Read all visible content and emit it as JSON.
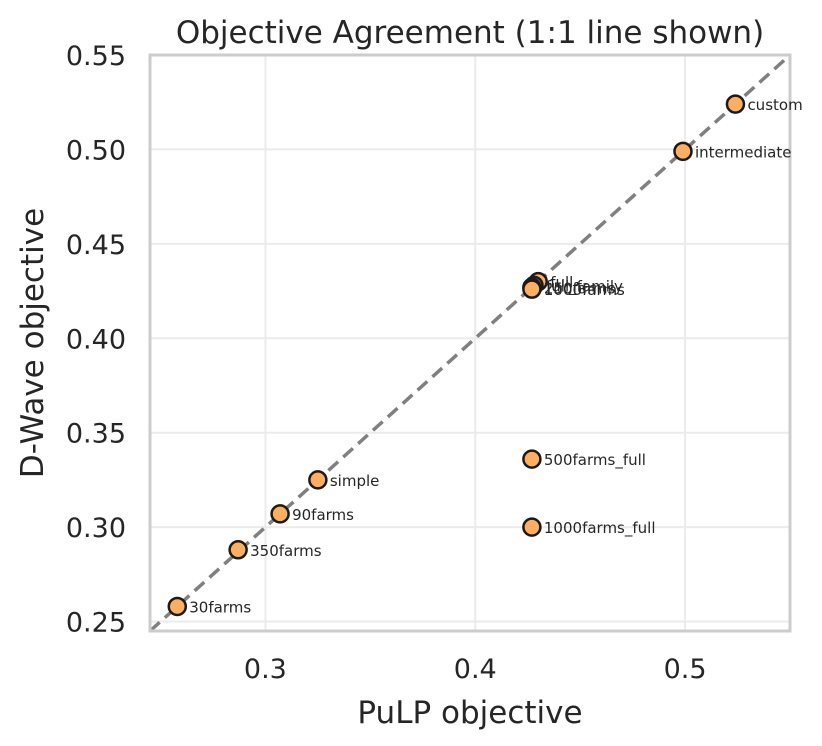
{
  "chart_data": {
    "type": "scatter",
    "title": "Objective Agreement (1:1 line shown)",
    "xlabel": "PuLP objective",
    "ylabel": "D-Wave objective",
    "xlim": [
      0.245,
      0.55
    ],
    "ylim": [
      0.245,
      0.55
    ],
    "xticks": [
      0.3,
      0.4,
      0.5
    ],
    "xtick_labels": [
      "0.3",
      "0.4",
      "0.5"
    ],
    "yticks": [
      0.25,
      0.3,
      0.35,
      0.4,
      0.45,
      0.5,
      0.55
    ],
    "ytick_labels": [
      "0.25",
      "0.30",
      "0.35",
      "0.40",
      "0.45",
      "0.50",
      "0.55"
    ],
    "grid": true,
    "reference_line": {
      "style": "dashed",
      "color": "#808080"
    },
    "marker_color": "#fdae61",
    "marker_edge_color": "#1a1a1a",
    "points": [
      {
        "label": "custom",
        "x": 0.524,
        "y": 0.524
      },
      {
        "label": "intermediate",
        "x": 0.499,
        "y": 0.499
      },
      {
        "label": "full",
        "x": 0.43,
        "y": 0.43
      },
      {
        "label": "full_family",
        "x": 0.428,
        "y": 0.428
      },
      {
        "label": "250farms",
        "x": 0.427,
        "y": 0.427
      },
      {
        "label": "1000farms",
        "x": 0.427,
        "y": 0.426
      },
      {
        "label": "500farms_full",
        "x": 0.427,
        "y": 0.336
      },
      {
        "label": "1000farms_full",
        "x": 0.427,
        "y": 0.3
      },
      {
        "label": "simple",
        "x": 0.325,
        "y": 0.325
      },
      {
        "label": "90farms",
        "x": 0.307,
        "y": 0.307
      },
      {
        "label": "350farms",
        "x": 0.287,
        "y": 0.288
      },
      {
        "label": "30farms",
        "x": 0.258,
        "y": 0.258
      }
    ]
  }
}
